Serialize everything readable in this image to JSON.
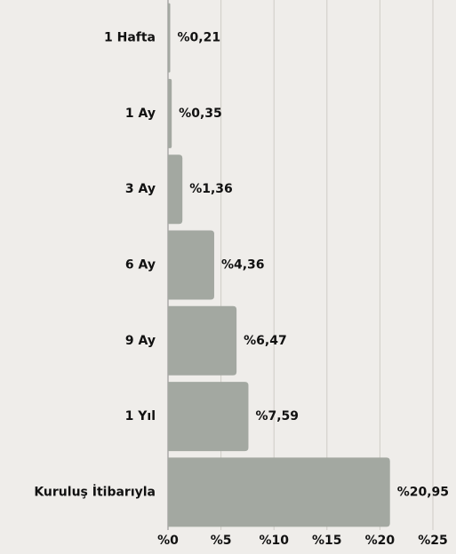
{
  "chart_data": {
    "type": "bar",
    "orientation": "horizontal",
    "categories": [
      "1 Hafta",
      "1 Ay",
      "3 Ay",
      "6 Ay",
      "9 Ay",
      "1 Yıl",
      "Kuruluş İtibarıyla"
    ],
    "values": [
      0.21,
      0.35,
      1.36,
      4.36,
      6.47,
      7.59,
      20.95
    ],
    "value_labels": [
      "%0,21",
      "%0,35",
      "%1,36",
      "%4,36",
      "%6,47",
      "%7,59",
      "%20,95"
    ],
    "color": "#a3a8a1",
    "xlim": [
      0,
      25
    ],
    "xticks": [
      {
        "value": 0,
        "label": "%0"
      },
      {
        "value": 5,
        "label": "%5"
      },
      {
        "value": 10,
        "label": "%10"
      },
      {
        "value": 15,
        "label": "%15"
      },
      {
        "value": 20,
        "label": "%20"
      },
      {
        "value": 25,
        "label": "%25"
      }
    ],
    "grid": true
  }
}
